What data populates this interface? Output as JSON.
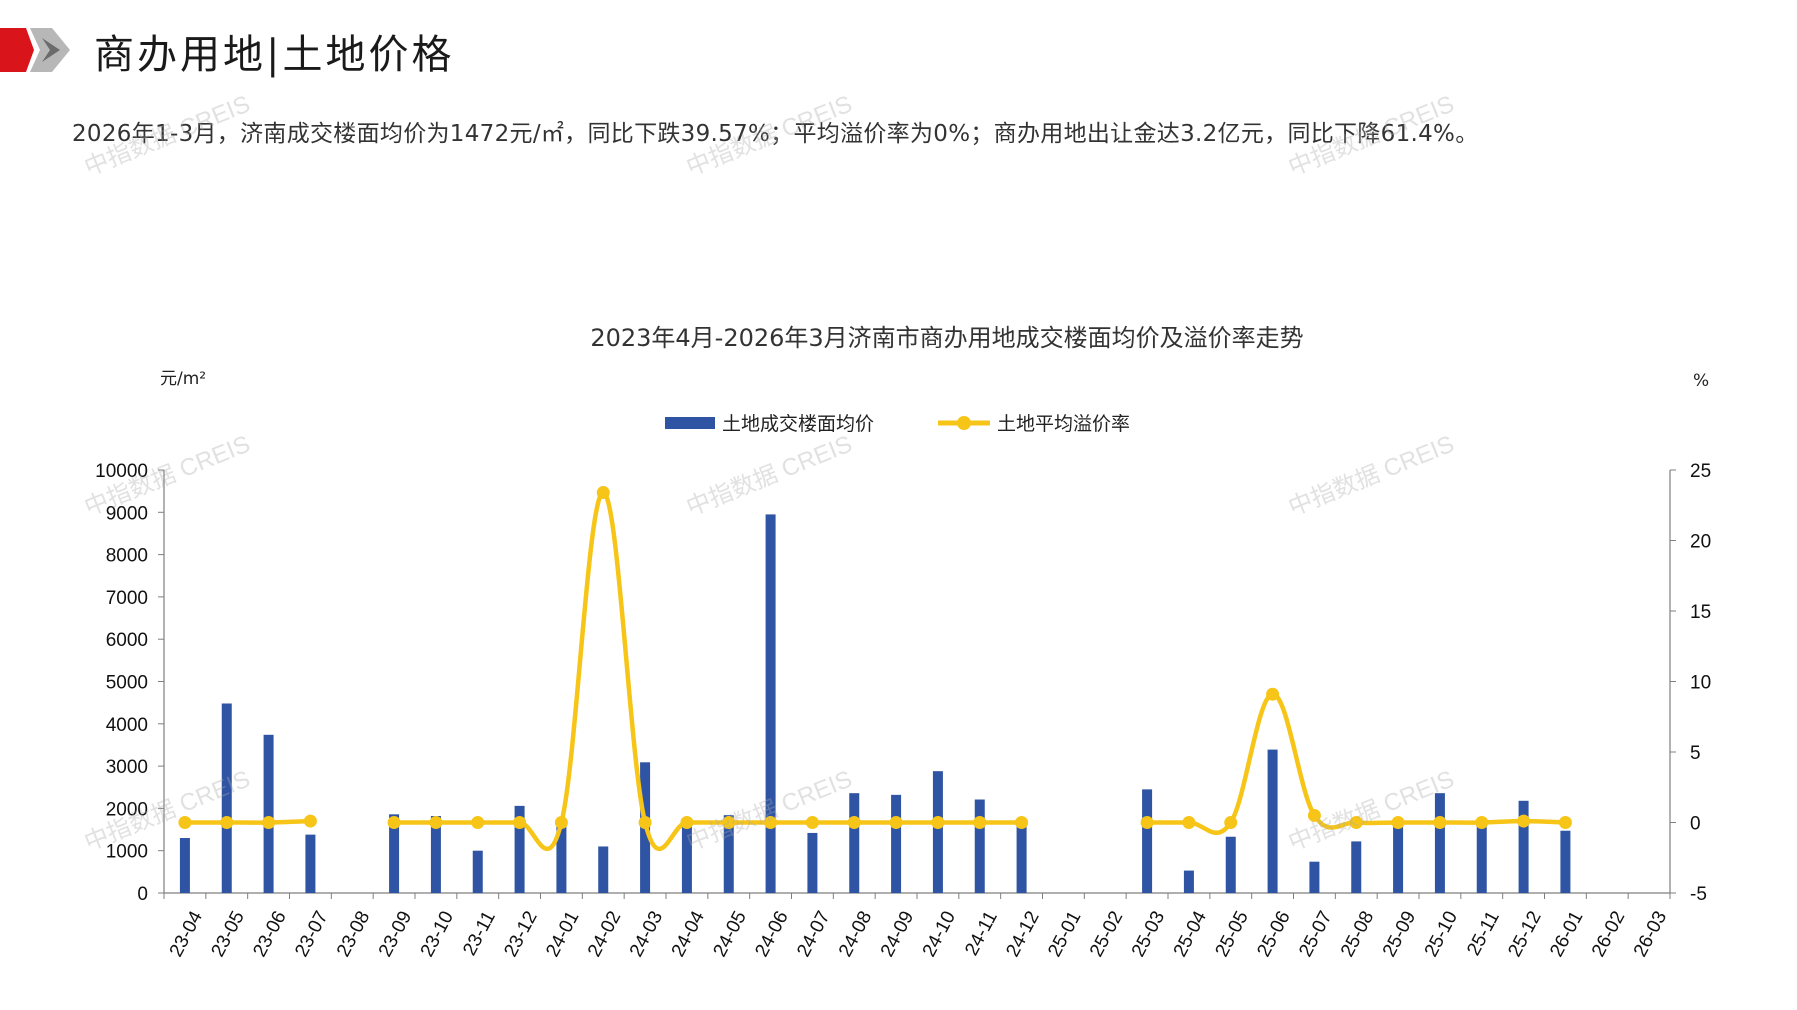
{
  "header": {
    "title": "商办用地|土地价格"
  },
  "summary": "2026年1-3月，济南成交楼面均价为1472元/㎡，同比下跌39.57%；平均溢价率为0%；商办用地出让金达3.2亿元，同比下降61.4%。",
  "watermark_text": "中指数据 CREIS",
  "colors": {
    "bar": "#2e54a3",
    "line": "#f6c518",
    "brand_red": "#d9141b",
    "brand_gray": "#a6a6a6"
  },
  "chart_data": {
    "type": "bar",
    "title": "2023年4月-2026年3月济南市商办用地成交楼面均价及溢价率走势",
    "y_left_unit": "元/m²",
    "y_right_unit": "%",
    "ylim_left": [
      0,
      10000
    ],
    "ylim_right": [
      -5,
      25
    ],
    "y_left_ticks": [
      "0",
      "1000",
      "2000",
      "3000",
      "4000",
      "5000",
      "6000",
      "7000",
      "8000",
      "9000",
      "10000"
    ],
    "y_right_ticks": [
      "-5",
      "0",
      "5",
      "10",
      "15",
      "20",
      "25"
    ],
    "legend_position": "top-center",
    "categories": [
      "23-04",
      "23-05",
      "23-06",
      "23-07",
      "23-08",
      "23-09",
      "23-10",
      "23-11",
      "23-12",
      "24-01",
      "24-02",
      "24-03",
      "24-04",
      "24-05",
      "24-06",
      "24-07",
      "24-08",
      "24-09",
      "24-10",
      "24-11",
      "24-12",
      "25-01",
      "25-02",
      "25-03",
      "25-04",
      "25-05",
      "25-06",
      "25-07",
      "25-08",
      "25-09",
      "25-10",
      "25-11",
      "25-12",
      "26-01",
      "26-02",
      "26-03"
    ],
    "series": [
      {
        "name": "土地成交楼面均价",
        "type": "bar",
        "axis": "left",
        "values": [
          1300,
          4480,
          3740,
          1380,
          null,
          1860,
          1820,
          1000,
          2060,
          1700,
          1100,
          3090,
          1720,
          1840,
          8950,
          1420,
          2360,
          2320,
          2880,
          2210,
          1690,
          null,
          null,
          2450,
          530,
          1330,
          3390,
          740,
          1220,
          1640,
          2360,
          1700,
          2180,
          1472,
          null,
          null
        ]
      },
      {
        "name": "土地平均溢价率",
        "type": "line",
        "axis": "right",
        "values": [
          0,
          0,
          0,
          0.1,
          null,
          0,
          0,
          0,
          0,
          0,
          23.4,
          0,
          0,
          0,
          0,
          0,
          0,
          0,
          0,
          0,
          0,
          null,
          null,
          0,
          0,
          0,
          9.1,
          0.5,
          0,
          0,
          0,
          0,
          0.1,
          0,
          null,
          null
        ]
      }
    ]
  }
}
